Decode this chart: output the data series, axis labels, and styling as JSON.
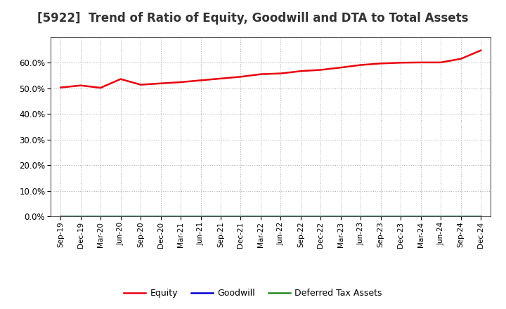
{
  "title": "[5922]  Trend of Ratio of Equity, Goodwill and DTA to Total Assets",
  "x_labels": [
    "Sep-19",
    "Dec-19",
    "Mar-20",
    "Jun-20",
    "Sep-20",
    "Dec-20",
    "Mar-21",
    "Jun-21",
    "Sep-21",
    "Dec-21",
    "Mar-22",
    "Jun-22",
    "Sep-22",
    "Dec-22",
    "Mar-23",
    "Jun-23",
    "Sep-23",
    "Dec-23",
    "Mar-24",
    "Jun-24",
    "Sep-24",
    "Dec-24"
  ],
  "equity": [
    0.503,
    0.511,
    0.502,
    0.536,
    0.514,
    0.519,
    0.524,
    0.531,
    0.538,
    0.545,
    0.555,
    0.558,
    0.567,
    0.572,
    0.581,
    0.591,
    0.597,
    0.6,
    0.601,
    0.601,
    0.615,
    0.648
  ],
  "goodwill": [
    0.0,
    0.0,
    0.0,
    0.0,
    0.0,
    0.0,
    0.0,
    0.0,
    0.0,
    0.0,
    0.0,
    0.0,
    0.0,
    0.0,
    0.0,
    0.0,
    0.0,
    0.0,
    0.0,
    0.0,
    0.0,
    0.0
  ],
  "dta": [
    0.0,
    0.0,
    0.0,
    0.0,
    0.0,
    0.0,
    0.0,
    0.0,
    0.0,
    0.0,
    0.0,
    0.0,
    0.0,
    0.0,
    0.0,
    0.0,
    0.0,
    0.0,
    0.0,
    0.0,
    0.0,
    0.0
  ],
  "equity_color": "#e8000d",
  "goodwill_color": "#0000cd",
  "dta_color": "#228B22",
  "background_color": "#ffffff",
  "plot_bg_color": "#ffffff",
  "grid_color": "#aaaaaa",
  "ylim": [
    0.0,
    0.7
  ],
  "yticks": [
    0.0,
    0.1,
    0.2,
    0.3,
    0.4,
    0.5,
    0.6
  ],
  "title_fontsize": 12,
  "legend_labels": [
    "Equity",
    "Goodwill",
    "Deferred Tax Assets"
  ],
  "line_width": 1.8
}
